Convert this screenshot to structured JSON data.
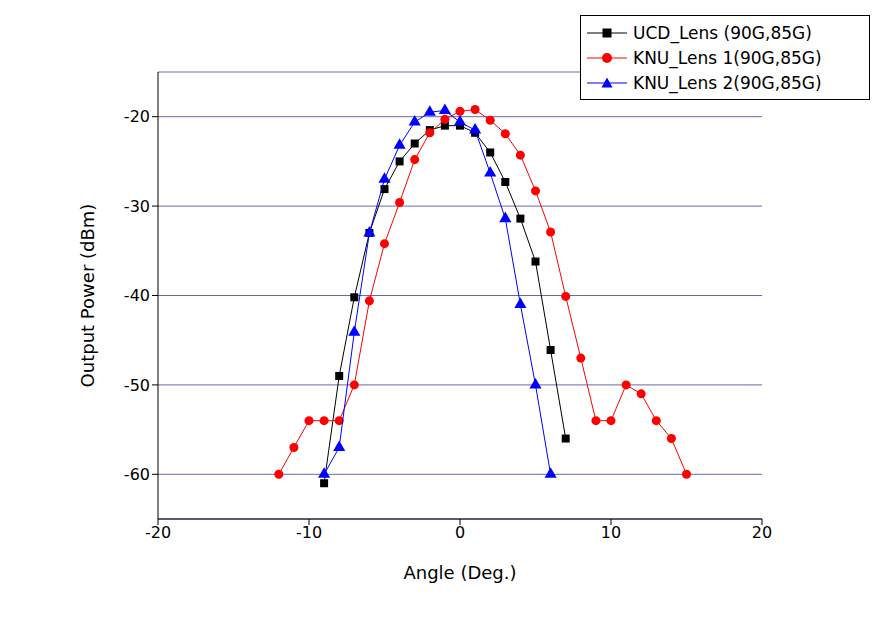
{
  "chart_data": {
    "type": "line",
    "x_label": "Angle (Deg.)",
    "y_label": "Output Power (dBm)",
    "xlim": [
      -20,
      20
    ],
    "xticks": [
      -20,
      -10,
      0,
      10,
      20
    ],
    "ylim": [
      -65,
      -15
    ],
    "yticks": [
      -60,
      -50,
      -40,
      -30,
      -20
    ],
    "grid": true,
    "legend": "top right",
    "series": [
      {
        "name": "UCD_Lens (90G,85G)",
        "color": "#000000",
        "marker": "square",
        "x": [
          -9,
          -8,
          -7,
          -6,
          -5,
          -4,
          -3,
          -2,
          -1,
          0,
          1,
          2,
          3,
          4,
          5,
          6,
          7
        ],
        "values": [
          -61,
          -49,
          -40.2,
          -33,
          -28.1,
          -25,
          -23,
          -21.5,
          -21,
          -21,
          -21.8,
          -24,
          -27.3,
          -31.4,
          -36.2,
          -46.1,
          -56
        ]
      },
      {
        "name": "KNU_Lens 1(90G,85G)",
        "color": "#ff0000",
        "marker": "circle",
        "x": [
          -12,
          -11,
          -10,
          -9,
          -8,
          -7,
          -6,
          -5,
          -4,
          -3,
          -2,
          -1,
          0,
          1,
          2,
          3,
          4,
          5,
          6,
          7,
          8,
          9,
          10,
          11,
          12,
          13,
          14,
          15
        ],
        "values": [
          -60,
          -57,
          -54,
          -54,
          -54,
          -50,
          -40.6,
          -34.2,
          -29.6,
          -24.8,
          -21.8,
          -20.3,
          -19.4,
          -19.2,
          -20.4,
          -21.9,
          -24.3,
          -28.3,
          -32.9,
          -40.1,
          -47,
          -54,
          -54,
          -50,
          -51,
          -54,
          -56,
          -60
        ]
      },
      {
        "name": "KNU_Lens 2(90G,85G)",
        "color": "#0000ff",
        "marker": "triangle",
        "x": [
          -9,
          -8,
          -7,
          -6,
          -5,
          -4,
          -3,
          -2,
          -1,
          0,
          1,
          2,
          3,
          4,
          5,
          6
        ],
        "values": [
          -60,
          -57,
          -44.1,
          -33,
          -27,
          -23.2,
          -20.6,
          -19.5,
          -19.3,
          -20.6,
          -21.5,
          -26.3,
          -31.4,
          -41,
          -50,
          -60
        ]
      }
    ]
  }
}
